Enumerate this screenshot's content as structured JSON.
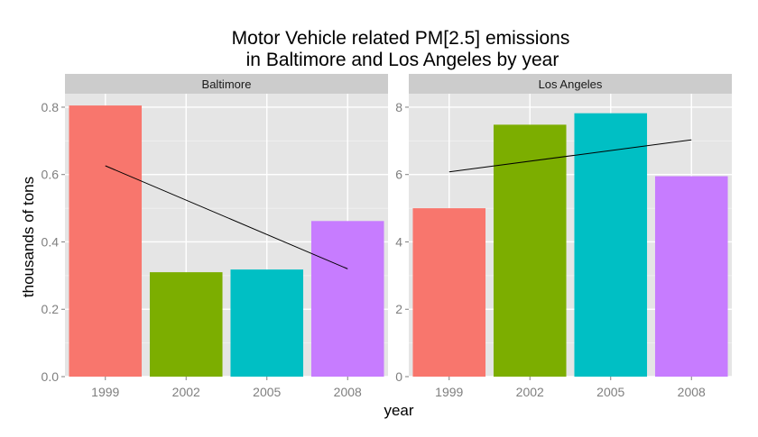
{
  "title_lines": [
    "Motor Vehicle related PM[2.5] emissions",
    "in Baltimore and Los Angeles by year"
  ],
  "xlabel": "year",
  "ylabel": "thousands of tons",
  "colors": {
    "panel_background": "#e5e5e5",
    "strip_background": "#cccccc",
    "grid_major": "#ffffff",
    "bar_fills": [
      "#f8766d",
      "#7cae00",
      "#00bfc4",
      "#c77cff"
    ],
    "trend_line": "#000000"
  },
  "chart_data": {
    "type": "bar",
    "categories": [
      "1999",
      "2002",
      "2005",
      "2008"
    ],
    "facets": [
      {
        "label": "Baltimore",
        "values": [
          0.805,
          0.31,
          0.318,
          0.462
        ],
        "ylim": [
          0,
          0.84
        ],
        "yticks": [
          0.0,
          0.2,
          0.4,
          0.6,
          0.8
        ],
        "ytick_labels": [
          "0.0",
          "0.2",
          "0.4",
          "0.6",
          "0.8"
        ],
        "trend": {
          "x_start": "1999",
          "y_start": 0.626,
          "x_end": "2008",
          "y_end": 0.32
        }
      },
      {
        "label": "Los Angeles",
        "values": [
          5.0,
          7.48,
          7.82,
          5.95
        ],
        "ylim": [
          0,
          8.4
        ],
        "yticks": [
          0,
          2,
          4,
          6,
          8
        ],
        "ytick_labels": [
          "0",
          "2",
          "4",
          "6",
          "8"
        ],
        "trend": {
          "x_start": "1999",
          "y_start": 6.08,
          "x_end": "2008",
          "y_end": 7.03
        }
      }
    ],
    "legend": "none",
    "grid": true
  }
}
